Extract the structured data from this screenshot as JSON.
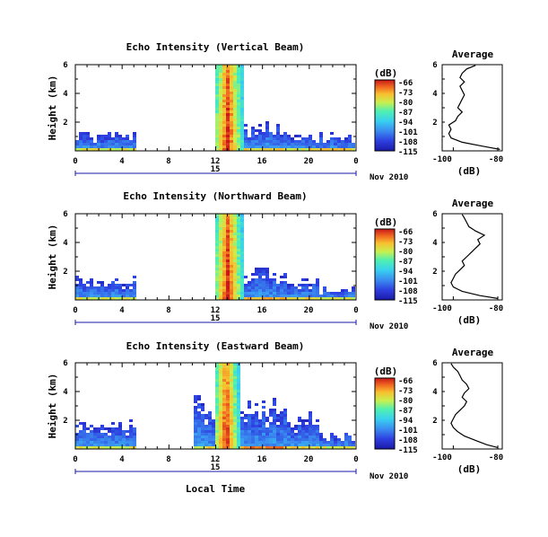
{
  "chart_data": [
    {
      "type": "heatmap",
      "title": "Echo Intensity (Vertical Beam)",
      "ylabel": "Height (km)",
      "xlim": [
        0,
        24
      ],
      "ylim": [
        0,
        6
      ],
      "x_ticks": [
        "0",
        "4",
        "8",
        "12",
        "16",
        "20",
        "0"
      ],
      "y_ticks": [
        "2",
        "4",
        "6"
      ],
      "date_day": "15",
      "date_label": "Nov 2010",
      "colorbar": {
        "label": "(dB)",
        "ticks": [
          "-66",
          "-73",
          "-80",
          "-87",
          "-94",
          "-101",
          "-108",
          "-115"
        ]
      },
      "profile": {
        "title": "Average",
        "xlabel": "(dB)",
        "x_ticks": [
          "-100",
          "-80"
        ],
        "y_ticks": [
          "2",
          "4",
          "6"
        ],
        "xlim": [
          -105,
          -78
        ],
        "heights": [
          0.1,
          0.3,
          0.6,
          0.9,
          1.2,
          1.5,
          1.8,
          2.1,
          2.4,
          2.7,
          3.0,
          3.3,
          3.6,
          3.9,
          4.2,
          4.5,
          4.8,
          5.1,
          5.4,
          5.7,
          5.95
        ],
        "values": [
          -79,
          -86,
          -96,
          -101,
          -102,
          -101,
          -102,
          -99,
          -98,
          -96,
          -98,
          -97,
          -96,
          -95,
          -96,
          -97,
          -95,
          -97,
          -96,
          -94,
          -90
        ]
      },
      "regions": [
        {
          "x": [
            0,
            5.2
          ],
          "top": 1.4,
          "spread": 0.6,
          "peak": 0.1
        },
        {
          "x": [
            12,
            14.3
          ],
          "top": 6,
          "spread": 0,
          "peak": 1.0
        },
        {
          "x": [
            14.3,
            18
          ],
          "top": 2.0,
          "spread": 0.8,
          "peak": 0.15
        },
        {
          "x": [
            18,
            20
          ],
          "top": 1.4,
          "spread": 0.5,
          "peak": 0.1
        },
        {
          "x": [
            20,
            24
          ],
          "top": 1.3,
          "spread": 0.6,
          "peak": 0.15
        }
      ]
    },
    {
      "type": "heatmap",
      "title": "Echo Intensity (Northward Beam)",
      "ylabel": "Height (km)",
      "xlim": [
        0,
        24
      ],
      "ylim": [
        0,
        6
      ],
      "x_ticks": [
        "0",
        "4",
        "8",
        "12",
        "16",
        "20",
        "0"
      ],
      "y_ticks": [
        "2",
        "4",
        "6"
      ],
      "date_day": "15",
      "date_label": "Nov 2010",
      "colorbar": {
        "label": "(dB)",
        "ticks": [
          "-66",
          "-73",
          "-80",
          "-87",
          "-94",
          "-101",
          "-108",
          "-115"
        ]
      },
      "profile": {
        "title": "Average",
        "xlabel": "(dB)",
        "x_ticks": [
          "-100",
          "-80"
        ],
        "y_ticks": [
          "2",
          "4",
          "6"
        ],
        "xlim": [
          -105,
          -78
        ],
        "heights": [
          0.1,
          0.3,
          0.6,
          0.9,
          1.2,
          1.5,
          1.8,
          2.1,
          2.4,
          2.7,
          3.0,
          3.3,
          3.6,
          3.9,
          4.2,
          4.5,
          4.8,
          5.1,
          5.4,
          5.7,
          5.95
        ],
        "values": [
          -80,
          -88,
          -96,
          -100,
          -101,
          -100,
          -99,
          -97,
          -95,
          -96,
          -94,
          -92,
          -90,
          -88,
          -89,
          -86,
          -90,
          -93,
          -94,
          -95,
          -96
        ]
      },
      "regions": [
        {
          "x": [
            0,
            5.2
          ],
          "top": 1.7,
          "spread": 0.6,
          "peak": 0.1
        },
        {
          "x": [
            12,
            14.3
          ],
          "top": 6,
          "spread": 0,
          "peak": 1.0
        },
        {
          "x": [
            14.3,
            18
          ],
          "top": 2.4,
          "spread": 1.0,
          "peak": 0.2
        },
        {
          "x": [
            18,
            21
          ],
          "top": 1.6,
          "spread": 0.6,
          "peak": 0.15
        },
        {
          "x": [
            21,
            24
          ],
          "top": 1.0,
          "spread": 0.5,
          "peak": 0.1
        }
      ]
    },
    {
      "type": "heatmap",
      "title": "Echo Intensity (Eastward Beam)",
      "ylabel": "Height (km)",
      "xlim": [
        0,
        24
      ],
      "ylim": [
        0,
        6
      ],
      "x_ticks": [
        "0",
        "4",
        "8",
        "12",
        "16",
        "20",
        "0"
      ],
      "y_ticks": [
        "2",
        "4",
        "6"
      ],
      "date_day": "15",
      "date_label": "Nov 2010",
      "xlabel": "Local Time",
      "colorbar": {
        "label": "(dB)",
        "ticks": [
          "-66",
          "-73",
          "-80",
          "-87",
          "-94",
          "-101",
          "-108",
          "-115"
        ]
      },
      "profile": {
        "title": "Average",
        "xlabel": "(dB)",
        "x_ticks": [
          "-100",
          "-80"
        ],
        "y_ticks": [
          "2",
          "4",
          "6"
        ],
        "xlim": [
          -105,
          -78
        ],
        "heights": [
          0.1,
          0.3,
          0.6,
          0.9,
          1.2,
          1.5,
          1.8,
          2.1,
          2.4,
          2.7,
          3.0,
          3.3,
          3.6,
          3.9,
          4.2,
          4.5,
          4.8,
          5.1,
          5.4,
          5.7,
          5.95
        ],
        "values": [
          -80,
          -85,
          -90,
          -95,
          -98,
          -100,
          -101,
          -100,
          -99,
          -97,
          -95,
          -94,
          -96,
          -95,
          -93,
          -94,
          -96,
          -97,
          -98,
          -100,
          -101
        ]
      },
      "regions": [
        {
          "x": [
            0,
            5.2
          ],
          "top": 2.1,
          "spread": 0.8,
          "peak": 0.1
        },
        {
          "x": [
            10.2,
            11.0
          ],
          "top": 4.3,
          "spread": 1.5,
          "peak": 0.05
        },
        {
          "x": [
            11.0,
            12.0
          ],
          "top": 3.0,
          "spread": 1.0,
          "peak": 0.15
        },
        {
          "x": [
            12,
            14.0
          ],
          "top": 6,
          "spread": 0,
          "peak": 1.0
        },
        {
          "x": [
            14.0,
            18
          ],
          "top": 3.6,
          "spread": 1.5,
          "peak": 0.25
        },
        {
          "x": [
            18,
            21
          ],
          "top": 2.6,
          "spread": 1.2,
          "peak": 0.15
        },
        {
          "x": [
            21,
            24
          ],
          "top": 1.2,
          "spread": 0.6,
          "peak": 0.1
        }
      ]
    }
  ]
}
